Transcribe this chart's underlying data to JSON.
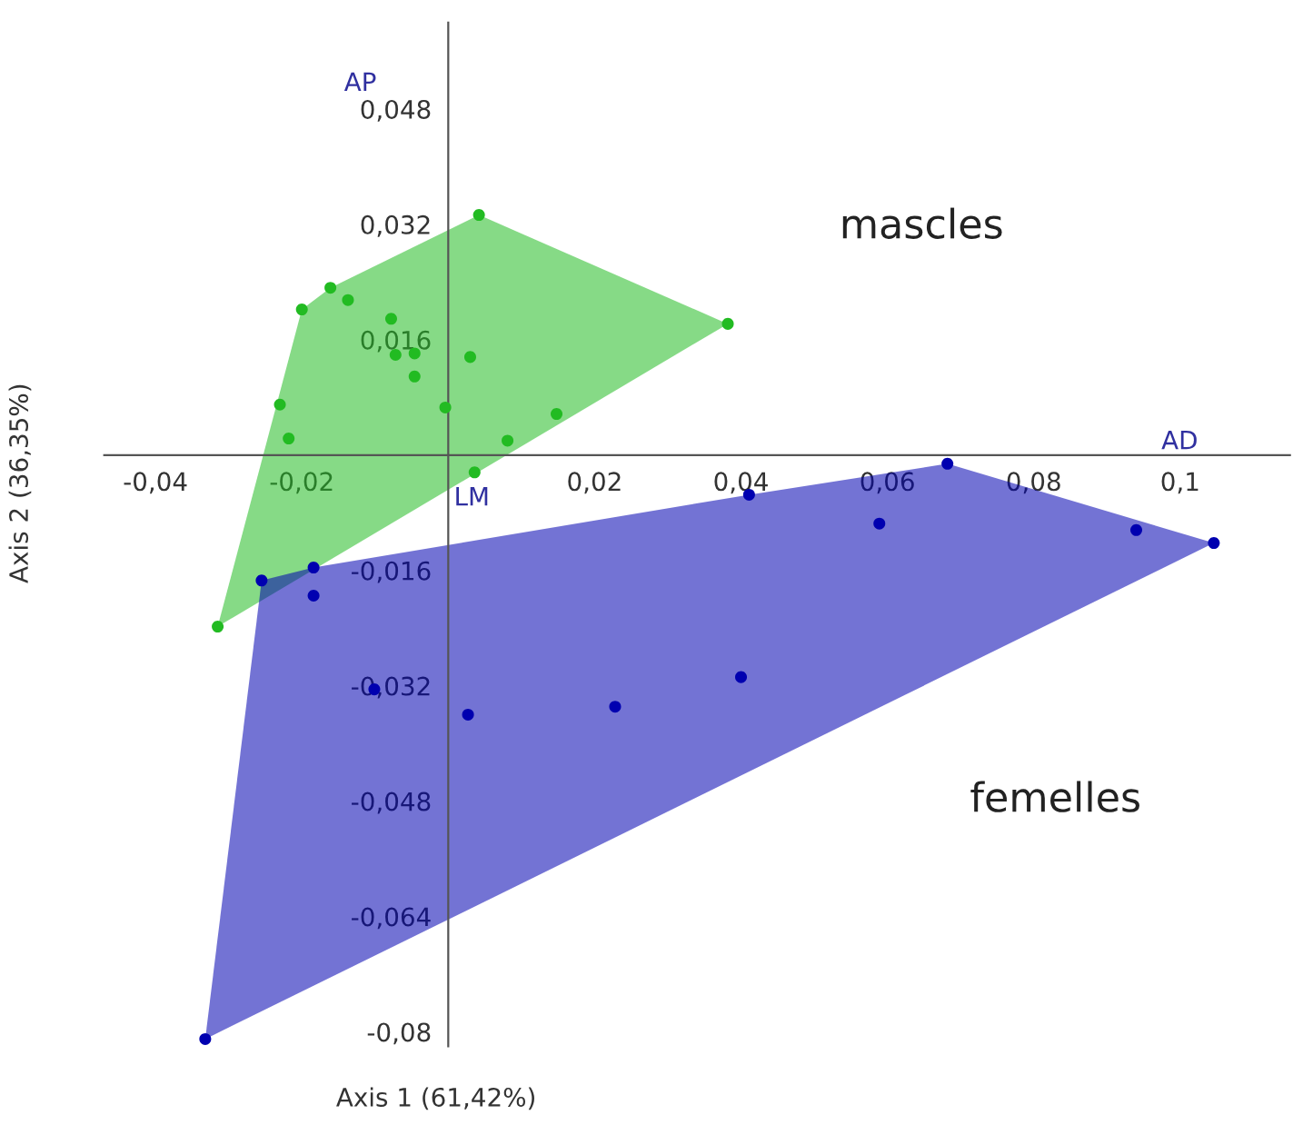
{
  "chart_data": {
    "type": "scatter",
    "xlabel": "Axis 1 (61,42%)",
    "ylabel": "Axis 2 (36,35%)",
    "marker": "circle",
    "grid": false,
    "legend": false,
    "xlim": [
      -0.047,
      0.115
    ],
    "ylim": [
      -0.082,
      0.06
    ],
    "xticks": [
      {
        "value": -0.04,
        "label": "-0,04"
      },
      {
        "value": -0.02,
        "label": "-0,02"
      },
      {
        "value": 0.02,
        "label": "0,02"
      },
      {
        "value": 0.04,
        "label": "0,04"
      },
      {
        "value": 0.06,
        "label": "0,06"
      },
      {
        "value": 0.08,
        "label": "0,08"
      },
      {
        "value": 0.1,
        "label": "0,1"
      }
    ],
    "yticks": [
      {
        "value": -0.08,
        "label": "-0,08"
      },
      {
        "value": -0.064,
        "label": "-0,064"
      },
      {
        "value": -0.048,
        "label": "-0,048"
      },
      {
        "value": -0.032,
        "label": "-0,032"
      },
      {
        "value": -0.016,
        "label": "-0,016"
      },
      {
        "value": 0.016,
        "label": "0,016"
      },
      {
        "value": 0.032,
        "label": "0,032"
      },
      {
        "value": 0.048,
        "label": "0,048"
      }
    ],
    "series": [
      {
        "name": "mascles",
        "color": "#22bb22",
        "x": [
          0.0042,
          -0.02,
          -0.0161,
          -0.0137,
          -0.0078,
          -0.0072,
          -0.0046,
          -0.0046,
          0.003,
          -0.0004,
          -0.023,
          -0.0218,
          0.0081,
          0.0148,
          0.0036,
          0.0382,
          -0.0315
        ],
        "values": [
          0.0333,
          0.0202,
          0.0232,
          0.0215,
          0.0189,
          0.0139,
          0.0141,
          0.0109,
          0.0136,
          0.0066,
          0.007,
          0.0023,
          0.002,
          0.0057,
          -0.0024,
          0.0182,
          -0.0238
        ]
      },
      {
        "name": "femelles",
        "color": "#0000b0",
        "x": [
          -0.0255,
          -0.0184,
          -0.0184,
          -0.0101,
          0.0027,
          0.0228,
          0.04,
          0.0411,
          0.0589,
          0.0682,
          0.094,
          0.1046,
          -0.0332
        ],
        "values": [
          -0.0174,
          -0.0156,
          -0.0195,
          -0.0325,
          -0.036,
          -0.0349,
          -0.0308,
          -0.0055,
          -0.0095,
          -0.0012,
          -0.0104,
          -0.0122,
          -0.081
        ]
      }
    ],
    "annotations": [
      "AP",
      "AD",
      "LM"
    ]
  }
}
